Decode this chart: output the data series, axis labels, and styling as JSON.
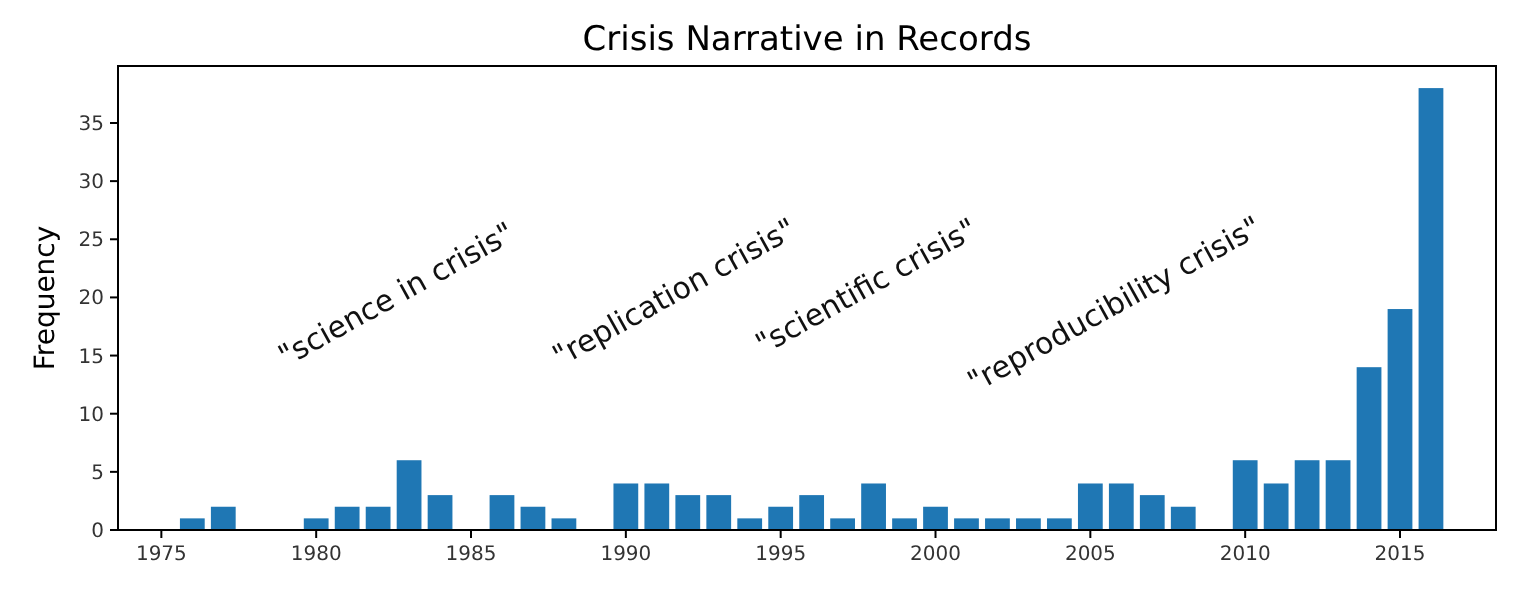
{
  "chart_data": {
    "type": "bar",
    "title": "Crisis Narrative in Records",
    "ylabel": "Frequency",
    "x": [
      1976,
      1977,
      1980,
      1981,
      1982,
      1983,
      1984,
      1986,
      1987,
      1988,
      1990,
      1991,
      1992,
      1993,
      1994,
      1995,
      1996,
      1997,
      1998,
      1999,
      2000,
      2001,
      2002,
      2003,
      2004,
      2005,
      2006,
      2007,
      2008,
      2010,
      2011,
      2012,
      2013,
      2014,
      2015,
      2016
    ],
    "values": [
      1,
      2,
      1,
      2,
      2,
      6,
      3,
      3,
      2,
      1,
      4,
      4,
      3,
      3,
      1,
      2,
      3,
      1,
      4,
      1,
      2,
      1,
      1,
      1,
      1,
      4,
      4,
      3,
      2,
      6,
      4,
      6,
      6,
      14,
      19,
      38
    ],
    "color": "#1f77b4",
    "xlim": [
      1973.6,
      2018.1
    ],
    "xticks": [
      1975,
      1980,
      1985,
      1990,
      1995,
      2000,
      2005,
      2010,
      2015
    ],
    "ylim": [
      0,
      39.9
    ],
    "yticks": [
      0,
      5,
      10,
      15,
      20,
      25,
      30,
      35
    ],
    "annotations": [
      "\"science in crisis\"",
      "\"replication crisis\"",
      "\"scientific crisis\"",
      "\"reproducibility crisis\""
    ],
    "grid": false
  }
}
